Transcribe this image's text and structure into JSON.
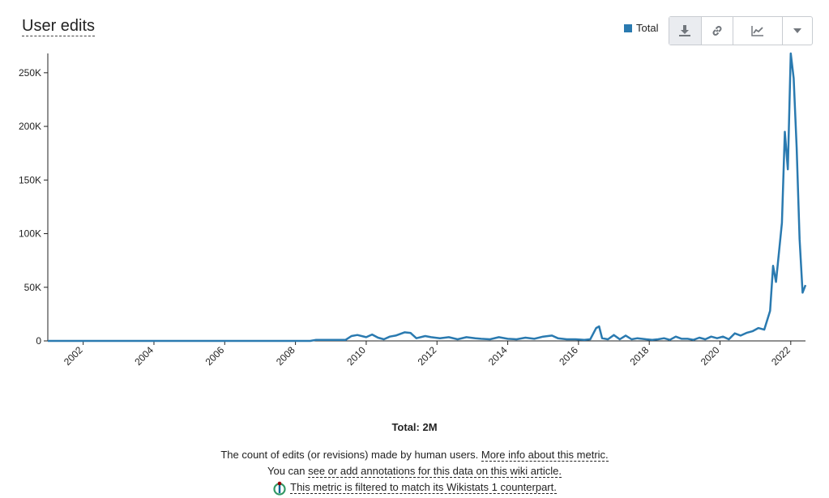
{
  "title": "User edits",
  "legend": {
    "label": "Total",
    "color": "#2a7ab0"
  },
  "toolbar": {
    "buttons": [
      {
        "icon": "download-icon"
      },
      {
        "icon": "link-icon"
      },
      {
        "icon": "chart-type-icon"
      },
      {
        "icon": "caret-down-icon"
      }
    ]
  },
  "chart_data": {
    "type": "line",
    "series": [
      {
        "name": "Total",
        "color": "#2a7ab0"
      }
    ],
    "x_ticks": [
      "2002",
      "2004",
      "2006",
      "2008",
      "2010",
      "2012",
      "2014",
      "2016",
      "2018",
      "2020",
      "2022"
    ],
    "y_ticks": [
      "0",
      "50K",
      "100K",
      "150K",
      "200K",
      "250K"
    ],
    "ylim": [
      0,
      268000
    ],
    "xlim": [
      "2001-01",
      "2022-06"
    ],
    "grid": false,
    "legend_position": "top-right",
    "points": [
      [
        "2001-01",
        0
      ],
      [
        "2008-06",
        0
      ],
      [
        "2008-08",
        1000
      ],
      [
        "2009-06",
        1000
      ],
      [
        "2009-08",
        4500
      ],
      [
        "2009-10",
        5500
      ],
      [
        "2010-01",
        3500
      ],
      [
        "2010-03",
        6000
      ],
      [
        "2010-05",
        3000
      ],
      [
        "2010-07",
        1500
      ],
      [
        "2010-09",
        4000
      ],
      [
        "2010-11",
        5000
      ],
      [
        "2011-02",
        8000
      ],
      [
        "2011-04",
        7500
      ],
      [
        "2011-06",
        2500
      ],
      [
        "2011-09",
        4500
      ],
      [
        "2011-11",
        3500
      ],
      [
        "2012-02",
        2500
      ],
      [
        "2012-05",
        3500
      ],
      [
        "2012-08",
        1500
      ],
      [
        "2012-11",
        3500
      ],
      [
        "2013-02",
        2500
      ],
      [
        "2013-04",
        2000
      ],
      [
        "2013-07",
        1500
      ],
      [
        "2013-10",
        3500
      ],
      [
        "2014-01",
        2000
      ],
      [
        "2014-04",
        1500
      ],
      [
        "2014-07",
        3000
      ],
      [
        "2014-10",
        2000
      ],
      [
        "2015-01",
        4000
      ],
      [
        "2015-04",
        5000
      ],
      [
        "2015-06",
        2500
      ],
      [
        "2015-09",
        1500
      ],
      [
        "2015-12",
        1500
      ],
      [
        "2016-03",
        1000
      ],
      [
        "2016-05",
        1500
      ],
      [
        "2016-07",
        12000
      ],
      [
        "2016-08",
        13500
      ],
      [
        "2016-09",
        2500
      ],
      [
        "2016-11",
        1500
      ],
      [
        "2017-01",
        5500
      ],
      [
        "2017-03",
        1500
      ],
      [
        "2017-05",
        5000
      ],
      [
        "2017-07",
        1500
      ],
      [
        "2017-09",
        2500
      ],
      [
        "2017-12",
        1500
      ],
      [
        "2018-02",
        1000
      ],
      [
        "2018-04",
        1500
      ],
      [
        "2018-06",
        2500
      ],
      [
        "2018-08",
        1000
      ],
      [
        "2018-10",
        4000
      ],
      [
        "2018-12",
        2000
      ],
      [
        "2019-02",
        2000
      ],
      [
        "2019-04",
        1000
      ],
      [
        "2019-06",
        3000
      ],
      [
        "2019-08",
        1500
      ],
      [
        "2019-10",
        4000
      ],
      [
        "2019-12",
        2500
      ],
      [
        "2020-02",
        4000
      ],
      [
        "2020-04",
        1500
      ],
      [
        "2020-06",
        7000
      ],
      [
        "2020-08",
        5000
      ],
      [
        "2020-10",
        7500
      ],
      [
        "2020-12",
        9000
      ],
      [
        "2021-02",
        12000
      ],
      [
        "2021-04",
        10500
      ],
      [
        "2021-06",
        28000
      ],
      [
        "2021-07",
        70000
      ],
      [
        "2021-08",
        55000
      ],
      [
        "2021-10",
        110000
      ],
      [
        "2021-11",
        195000
      ],
      [
        "2021-12",
        160000
      ],
      [
        "2022-01",
        270000
      ],
      [
        "2022-02",
        245000
      ],
      [
        "2022-03",
        180000
      ],
      [
        "2022-04",
        95000
      ],
      [
        "2022-05",
        45000
      ],
      [
        "2022-06",
        52000
      ]
    ]
  },
  "total_label": "Total: 2M",
  "info": {
    "line1_text": "The count of edits (or revisions) made by human users. ",
    "line1_link": "More info about this metric.",
    "line2_text": "You can ",
    "line2_link": "see or add annotations for this data on this wiki article.",
    "line3_link": "This metric is filtered to match its Wikistats 1 counterpart."
  }
}
